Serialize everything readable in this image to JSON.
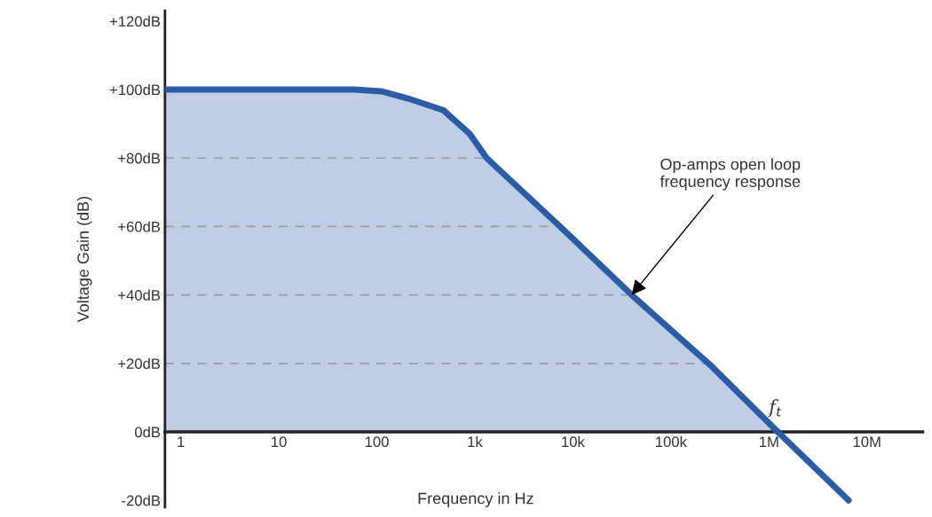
{
  "chart_data": {
    "type": "area",
    "xlabel": "Frequency in Hz",
    "ylabel": "Voltage Gain (dB)",
    "x": [
      0.69,
      1,
      10,
      60,
      111,
      208,
      476,
      890,
      1320,
      7400,
      39800,
      264000,
      1230000
    ],
    "series": [
      {
        "color": "#2b5ca6",
        "values": [
          100,
          100,
          100,
          100,
          99.5,
          97.4,
          94,
          87,
          80,
          60,
          40,
          19,
          0
        ]
      },
      {
        "type": "line",
        "color": "#2b5ca6",
        "x": [
          1230000,
          6500000
        ],
        "values": [
          0,
          -20
        ]
      }
    ],
    "log": "x",
    "xlim": [
      0.69,
      37000000
    ],
    "xticks": [
      1,
      10,
      100,
      {
        "value": 1000,
        "label": "1k"
      },
      {
        "value": 10000,
        "label": "10k"
      },
      {
        "value": 100000,
        "label": "100k"
      },
      {
        "value": 1000000,
        "label": "1M"
      },
      {
        "value": 10000000,
        "label": "10M"
      }
    ],
    "ylim": [
      -22,
      123
    ],
    "yticks": [
      {
        "value": 120,
        "label": "+120dB"
      },
      {
        "value": 100,
        "label": "+100dB"
      },
      {
        "value": 80,
        "label": "+80dB"
      },
      {
        "value": 60,
        "label": "+60dB"
      },
      {
        "value": 40,
        "label": "+40dB"
      },
      {
        "value": 20,
        "label": "+20dB"
      },
      {
        "value": 0,
        "label": "0dB"
      },
      {
        "value": -20,
        "label": "-20dB"
      }
    ],
    "ref_lines": [
      {
        "axis": "y",
        "value": 20,
        "color": "#9a9a9a",
        "line_style": "dashed"
      },
      {
        "axis": "y",
        "value": 40,
        "color": "#9a9a9a",
        "line_style": "dashed"
      },
      {
        "axis": "y",
        "value": 60,
        "color": "#9a9a9a",
        "line_style": "dashed"
      },
      {
        "axis": "y",
        "value": 80,
        "color": "#9a9a9a",
        "line_style": "dashed"
      }
    ],
    "annotations": [
      {
        "text": "Op-amps open loop\nfrequency response",
        "x": 39800,
        "y": 40
      },
      {
        "text": "f$_{t}$",
        "x": 1230000,
        "y": 0
      }
    ],
    "grid": false,
    "legend": false
  }
}
